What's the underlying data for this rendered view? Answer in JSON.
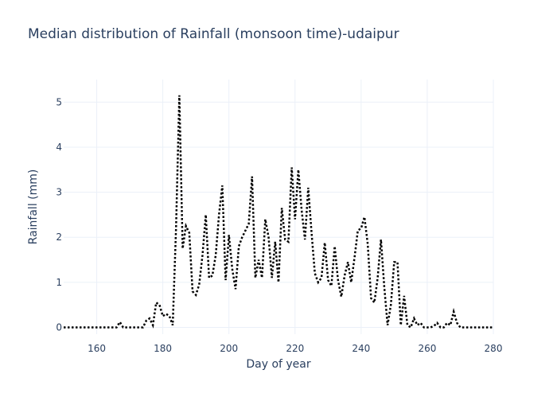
{
  "chart_data": {
    "type": "line",
    "title": "Median distribution of Rainfall (monsoon time)-udaipur",
    "xlabel": "Day of year",
    "ylabel": "Rainfall (mm)",
    "xlim": [
      150,
      280
    ],
    "ylim": [
      -0.15,
      5.5
    ],
    "x_ticks": [
      160,
      180,
      200,
      220,
      240,
      260,
      280
    ],
    "y_ticks": [
      0,
      1,
      2,
      3,
      4,
      5
    ],
    "grid": true,
    "line_style": "dotted",
    "line_color": "#000000",
    "series": [
      {
        "x": [
          150,
          151,
          152,
          153,
          154,
          155,
          156,
          157,
          158,
          159,
          160,
          161,
          162,
          163,
          164,
          165,
          166,
          167,
          168,
          169,
          170,
          171,
          172,
          173,
          174,
          175,
          176,
          177,
          178,
          179,
          180,
          181,
          182,
          183,
          184,
          185,
          186,
          187,
          188,
          189,
          190,
          191,
          192,
          193,
          194,
          195,
          196,
          197,
          198,
          199,
          200,
          201,
          202,
          203,
          204,
          205,
          206,
          207,
          208,
          209,
          210,
          211,
          212,
          213,
          214,
          215,
          216,
          217,
          218,
          219,
          220,
          221,
          222,
          223,
          224,
          225,
          226,
          227,
          228,
          229,
          230,
          231,
          232,
          233,
          234,
          235,
          236,
          237,
          238,
          239,
          240,
          241,
          242,
          243,
          244,
          245,
          246,
          247,
          248,
          249,
          250,
          251,
          252,
          253,
          254,
          255,
          256,
          257,
          258,
          259,
          260,
          261,
          262,
          263,
          264,
          265,
          266,
          267,
          268,
          269,
          270,
          271,
          272,
          273,
          274,
          275,
          276,
          277,
          278,
          279,
          280
        ],
        "y": [
          0,
          0,
          0,
          0,
          0,
          0,
          0,
          0,
          0,
          0,
          0,
          0,
          0,
          0,
          0,
          0,
          0,
          0.12,
          0,
          0,
          0,
          0,
          0,
          0,
          0,
          0.15,
          0.2,
          0.05,
          0.55,
          0.5,
          0.25,
          0.3,
          0.25,
          0.05,
          2.2,
          5.15,
          1.75,
          2.25,
          2.1,
          0.8,
          0.72,
          0.95,
          1.6,
          2.5,
          1.1,
          1.15,
          1.6,
          2.5,
          3.15,
          1.05,
          2.05,
          1.3,
          0.85,
          1.8,
          2.0,
          2.15,
          2.3,
          3.35,
          1.1,
          1.5,
          1.1,
          2.4,
          2.0,
          1.1,
          1.9,
          1.0,
          2.65,
          1.95,
          1.9,
          3.55,
          2.4,
          3.5,
          2.6,
          1.95,
          3.1,
          2.1,
          1.2,
          1.0,
          1.1,
          1.88,
          1.05,
          0.92,
          1.8,
          1.05,
          0.68,
          1.15,
          1.45,
          1.0,
          1.55,
          2.15,
          2.2,
          2.45,
          1.85,
          0.65,
          0.55,
          1.1,
          1.95,
          0.9,
          0.05,
          0.5,
          1.45,
          1.45,
          0.05,
          0.7,
          0.05,
          0.0,
          0.2,
          0.05,
          0.1,
          0,
          0,
          0,
          0.03,
          0.1,
          0,
          0,
          0.1,
          0.05,
          0.35,
          0.1,
          0,
          0,
          0,
          0,
          0,
          0,
          0,
          0,
          0,
          0,
          0
        ]
      }
    ]
  }
}
